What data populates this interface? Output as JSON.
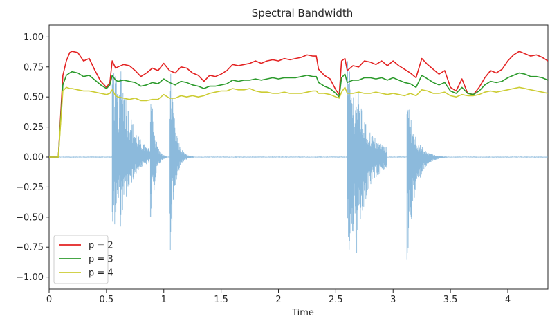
{
  "chart_data": {
    "type": "line",
    "title": "Spectral Bandwidth",
    "xlabel": "Time",
    "ylabel": "",
    "xlim": [
      0,
      4.35
    ],
    "ylim": [
      -1.1,
      1.1
    ],
    "x_ticks": [
      0,
      0.5,
      1,
      1.5,
      2,
      2.5,
      3,
      3.5,
      4
    ],
    "x_tick_labels": [
      "0",
      "0.5",
      "1",
      "1.5",
      "2",
      "2.5",
      "3",
      "3.5",
      "4"
    ],
    "y_ticks": [
      1.0,
      0.75,
      0.5,
      0.25,
      0.0,
      -0.25,
      -0.5,
      -0.75,
      -1.0
    ],
    "y_tick_labels": [
      "1.00",
      "0.75",
      "0.50",
      "0.25",
      "0.00",
      "−0.25",
      "−0.50",
      "−0.75",
      "−1.00"
    ],
    "grid": false,
    "legend_position": "lower-left",
    "waveform": {
      "color": "#7fb2d8",
      "baseline": 0.0,
      "bursts": [
        {
          "t0": 0.55,
          "peak_pos": 0.87,
          "peak_neg": -0.68,
          "decay": 0.12,
          "dur": 0.35
        },
        {
          "t0": 0.62,
          "peak_pos": 0.88,
          "peak_neg": -0.6,
          "decay": 0.1,
          "dur": 0.25
        },
        {
          "t0": 0.88,
          "peak_pos": 0.92,
          "peak_neg": -0.93,
          "decay": 0.03,
          "dur": 0.15
        },
        {
          "t0": 1.05,
          "peak_pos": 0.97,
          "peak_neg": -0.93,
          "decay": 0.04,
          "dur": 0.3
        },
        {
          "t0": 2.6,
          "peak_pos": 0.82,
          "peak_neg": -0.92,
          "decay": 0.15,
          "dur": 0.35
        },
        {
          "t0": 2.67,
          "peak_pos": 0.7,
          "peak_neg": -0.95,
          "decay": 0.1,
          "dur": 0.25
        },
        {
          "t0": 3.12,
          "peak_pos": 0.56,
          "peak_neg": -0.93,
          "decay": 0.07,
          "dur": 0.35
        }
      ]
    },
    "series": [
      {
        "name": "p = 2",
        "color": "#e32222",
        "x": [
          0.0,
          0.08,
          0.12,
          0.15,
          0.18,
          0.2,
          0.25,
          0.3,
          0.35,
          0.4,
          0.45,
          0.5,
          0.53,
          0.55,
          0.58,
          0.6,
          0.65,
          0.7,
          0.75,
          0.8,
          0.85,
          0.9,
          0.95,
          1.0,
          1.05,
          1.1,
          1.15,
          1.2,
          1.25,
          1.3,
          1.35,
          1.4,
          1.45,
          1.5,
          1.55,
          1.6,
          1.65,
          1.7,
          1.75,
          1.8,
          1.85,
          1.9,
          1.95,
          2.0,
          2.05,
          2.1,
          2.15,
          2.2,
          2.25,
          2.3,
          2.33,
          2.35,
          2.4,
          2.45,
          2.5,
          2.53,
          2.55,
          2.58,
          2.6,
          2.65,
          2.7,
          2.75,
          2.8,
          2.85,
          2.9,
          2.95,
          3.0,
          3.05,
          3.1,
          3.15,
          3.2,
          3.25,
          3.3,
          3.35,
          3.4,
          3.45,
          3.5,
          3.55,
          3.6,
          3.65,
          3.7,
          3.75,
          3.8,
          3.85,
          3.9,
          3.95,
          4.0,
          4.05,
          4.1,
          4.15,
          4.2,
          4.25,
          4.3,
          4.35
        ],
        "values": [
          0.0,
          0.0,
          0.68,
          0.8,
          0.87,
          0.88,
          0.87,
          0.8,
          0.82,
          0.72,
          0.63,
          0.58,
          0.62,
          0.8,
          0.74,
          0.75,
          0.77,
          0.76,
          0.72,
          0.67,
          0.7,
          0.74,
          0.72,
          0.78,
          0.72,
          0.7,
          0.75,
          0.74,
          0.7,
          0.68,
          0.63,
          0.68,
          0.67,
          0.69,
          0.72,
          0.77,
          0.76,
          0.77,
          0.78,
          0.8,
          0.78,
          0.8,
          0.81,
          0.8,
          0.82,
          0.81,
          0.82,
          0.83,
          0.85,
          0.84,
          0.84,
          0.73,
          0.68,
          0.65,
          0.56,
          0.52,
          0.8,
          0.82,
          0.72,
          0.76,
          0.75,
          0.8,
          0.79,
          0.77,
          0.8,
          0.76,
          0.8,
          0.76,
          0.73,
          0.7,
          0.66,
          0.82,
          0.77,
          0.73,
          0.69,
          0.72,
          0.58,
          0.55,
          0.65,
          0.53,
          0.52,
          0.58,
          0.66,
          0.72,
          0.7,
          0.73,
          0.8,
          0.85,
          0.88,
          0.86,
          0.84,
          0.85,
          0.83,
          0.8
        ]
      },
      {
        "name": "p = 3",
        "color": "#2b9a2b",
        "x": [
          0.0,
          0.08,
          0.12,
          0.15,
          0.18,
          0.2,
          0.25,
          0.3,
          0.35,
          0.4,
          0.45,
          0.5,
          0.53,
          0.55,
          0.58,
          0.6,
          0.65,
          0.7,
          0.75,
          0.8,
          0.85,
          0.9,
          0.95,
          1.0,
          1.05,
          1.1,
          1.15,
          1.2,
          1.25,
          1.3,
          1.35,
          1.4,
          1.45,
          1.5,
          1.55,
          1.6,
          1.65,
          1.7,
          1.75,
          1.8,
          1.85,
          1.9,
          1.95,
          2.0,
          2.05,
          2.1,
          2.15,
          2.2,
          2.25,
          2.3,
          2.33,
          2.35,
          2.4,
          2.45,
          2.5,
          2.53,
          2.55,
          2.58,
          2.6,
          2.65,
          2.7,
          2.75,
          2.8,
          2.85,
          2.9,
          2.95,
          3.0,
          3.05,
          3.1,
          3.15,
          3.2,
          3.25,
          3.3,
          3.35,
          3.4,
          3.45,
          3.5,
          3.55,
          3.6,
          3.65,
          3.7,
          3.75,
          3.8,
          3.85,
          3.9,
          3.95,
          4.0,
          4.05,
          4.1,
          4.15,
          4.2,
          4.25,
          4.3,
          4.35
        ],
        "values": [
          0.0,
          0.0,
          0.6,
          0.68,
          0.7,
          0.71,
          0.7,
          0.67,
          0.68,
          0.64,
          0.6,
          0.57,
          0.6,
          0.68,
          0.64,
          0.63,
          0.64,
          0.63,
          0.62,
          0.59,
          0.6,
          0.62,
          0.61,
          0.65,
          0.62,
          0.6,
          0.63,
          0.62,
          0.6,
          0.59,
          0.57,
          0.59,
          0.59,
          0.6,
          0.61,
          0.64,
          0.63,
          0.64,
          0.64,
          0.65,
          0.64,
          0.65,
          0.66,
          0.65,
          0.66,
          0.66,
          0.66,
          0.67,
          0.68,
          0.67,
          0.67,
          0.62,
          0.59,
          0.57,
          0.53,
          0.5,
          0.66,
          0.69,
          0.62,
          0.64,
          0.64,
          0.66,
          0.66,
          0.65,
          0.66,
          0.64,
          0.66,
          0.64,
          0.62,
          0.61,
          0.58,
          0.68,
          0.65,
          0.62,
          0.6,
          0.62,
          0.55,
          0.53,
          0.58,
          0.53,
          0.52,
          0.55,
          0.6,
          0.63,
          0.62,
          0.63,
          0.66,
          0.68,
          0.7,
          0.69,
          0.67,
          0.67,
          0.66,
          0.64
        ]
      },
      {
        "name": "p = 4",
        "color": "#cccc33",
        "x": [
          0.0,
          0.08,
          0.12,
          0.15,
          0.18,
          0.2,
          0.25,
          0.3,
          0.35,
          0.4,
          0.45,
          0.5,
          0.53,
          0.55,
          0.58,
          0.6,
          0.65,
          0.7,
          0.75,
          0.8,
          0.85,
          0.9,
          0.95,
          1.0,
          1.05,
          1.1,
          1.15,
          1.2,
          1.25,
          1.3,
          1.35,
          1.4,
          1.45,
          1.5,
          1.55,
          1.6,
          1.65,
          1.7,
          1.75,
          1.8,
          1.85,
          1.9,
          1.95,
          2.0,
          2.05,
          2.1,
          2.15,
          2.2,
          2.25,
          2.3,
          2.33,
          2.35,
          2.4,
          2.45,
          2.5,
          2.53,
          2.55,
          2.58,
          2.6,
          2.65,
          2.7,
          2.75,
          2.8,
          2.85,
          2.9,
          2.95,
          3.0,
          3.05,
          3.1,
          3.15,
          3.2,
          3.25,
          3.3,
          3.35,
          3.4,
          3.45,
          3.5,
          3.55,
          3.6,
          3.65,
          3.7,
          3.75,
          3.8,
          3.85,
          3.9,
          3.95,
          4.0,
          4.05,
          4.1,
          4.15,
          4.2,
          4.25,
          4.3,
          4.35
        ],
        "values": [
          0.0,
          0.0,
          0.55,
          0.58,
          0.57,
          0.57,
          0.56,
          0.55,
          0.55,
          0.54,
          0.53,
          0.52,
          0.53,
          0.56,
          0.51,
          0.5,
          0.49,
          0.48,
          0.49,
          0.47,
          0.47,
          0.48,
          0.48,
          0.52,
          0.49,
          0.49,
          0.51,
          0.5,
          0.51,
          0.5,
          0.51,
          0.53,
          0.54,
          0.55,
          0.55,
          0.57,
          0.56,
          0.56,
          0.57,
          0.55,
          0.54,
          0.54,
          0.53,
          0.53,
          0.54,
          0.53,
          0.53,
          0.53,
          0.54,
          0.55,
          0.55,
          0.53,
          0.53,
          0.52,
          0.5,
          0.49,
          0.54,
          0.58,
          0.53,
          0.53,
          0.54,
          0.53,
          0.53,
          0.54,
          0.53,
          0.52,
          0.53,
          0.52,
          0.51,
          0.53,
          0.51,
          0.56,
          0.55,
          0.53,
          0.53,
          0.54,
          0.51,
          0.5,
          0.52,
          0.51,
          0.51,
          0.52,
          0.54,
          0.55,
          0.54,
          0.55,
          0.56,
          0.57,
          0.58,
          0.57,
          0.56,
          0.55,
          0.54,
          0.53
        ]
      }
    ]
  }
}
